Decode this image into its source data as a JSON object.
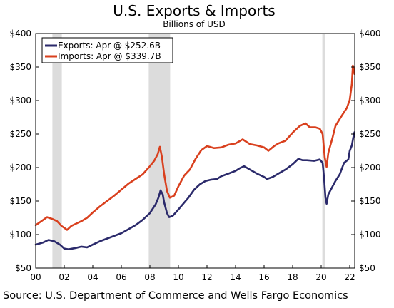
{
  "chart_data": {
    "type": "line",
    "title": "U.S. Exports & Imports",
    "subtitle": "Billions of USD",
    "source": "Source: U.S. Department of Commerce and Wells Fargo Economics",
    "ylim": [
      50,
      400
    ],
    "xlim": [
      2000.0,
      2022.35
    ],
    "yticks": [
      50,
      100,
      150,
      200,
      250,
      300,
      350,
      400
    ],
    "ytick_labels_left": [
      "$50",
      "$100",
      "$150",
      "$200",
      "$250",
      "$300",
      "$350",
      "$400"
    ],
    "ytick_labels_right": [
      "$50",
      "$100",
      "$150",
      "$200",
      "$250",
      "$300",
      "$350",
      "$400"
    ],
    "xticks": [
      2000,
      2002,
      2004,
      2006,
      2008,
      2010,
      2012,
      2014,
      2016,
      2018,
      2020,
      2022
    ],
    "xtick_labels": [
      "00",
      "02",
      "04",
      "06",
      "08",
      "10",
      "12",
      "14",
      "16",
      "18",
      "20",
      "22"
    ],
    "recessions": [
      [
        2001.17,
        2001.83
      ],
      [
        2007.92,
        2009.42
      ],
      [
        2020.08,
        2020.25
      ]
    ],
    "grid": false,
    "legend_position": "top-left",
    "series": [
      {
        "name": "Exports: Apr @ $252.6B",
        "color": "#2b2a6b",
        "points": [
          [
            2000.0,
            85
          ],
          [
            2000.5,
            88
          ],
          [
            2000.9,
            92
          ],
          [
            2001.3,
            90
          ],
          [
            2001.7,
            85
          ],
          [
            2002.0,
            79
          ],
          [
            2002.3,
            78
          ],
          [
            2002.8,
            80
          ],
          [
            2003.2,
            82
          ],
          [
            2003.6,
            81
          ],
          [
            2004.0,
            85
          ],
          [
            2004.5,
            90
          ],
          [
            2005.0,
            94
          ],
          [
            2005.5,
            98
          ],
          [
            2006.0,
            102
          ],
          [
            2006.5,
            108
          ],
          [
            2007.0,
            114
          ],
          [
            2007.5,
            122
          ],
          [
            2008.0,
            132
          ],
          [
            2008.4,
            145
          ],
          [
            2008.6,
            155
          ],
          [
            2008.75,
            166
          ],
          [
            2008.9,
            160
          ],
          [
            2009.0,
            148
          ],
          [
            2009.2,
            132
          ],
          [
            2009.35,
            126
          ],
          [
            2009.6,
            128
          ],
          [
            2009.9,
            135
          ],
          [
            2010.3,
            145
          ],
          [
            2010.7,
            155
          ],
          [
            2011.1,
            167
          ],
          [
            2011.5,
            175
          ],
          [
            2011.9,
            180
          ],
          [
            2012.3,
            182
          ],
          [
            2012.7,
            183
          ],
          [
            2013.0,
            187
          ],
          [
            2013.5,
            191
          ],
          [
            2014.0,
            195
          ],
          [
            2014.3,
            199
          ],
          [
            2014.6,
            202
          ],
          [
            2015.0,
            197
          ],
          [
            2015.5,
            191
          ],
          [
            2016.0,
            186
          ],
          [
            2016.2,
            183
          ],
          [
            2016.6,
            186
          ],
          [
            2017.0,
            191
          ],
          [
            2017.5,
            197
          ],
          [
            2018.0,
            205
          ],
          [
            2018.4,
            213
          ],
          [
            2018.7,
            211
          ],
          [
            2019.0,
            211
          ],
          [
            2019.5,
            210
          ],
          [
            2019.9,
            212
          ],
          [
            2020.1,
            207
          ],
          [
            2020.2,
            185
          ],
          [
            2020.3,
            155
          ],
          [
            2020.38,
            146
          ],
          [
            2020.5,
            160
          ],
          [
            2020.8,
            172
          ],
          [
            2021.0,
            180
          ],
          [
            2021.3,
            190
          ],
          [
            2021.6,
            207
          ],
          [
            2021.9,
            212
          ],
          [
            2022.0,
            225
          ],
          [
            2022.15,
            233
          ],
          [
            2022.25,
            245
          ],
          [
            2022.33,
            252.6
          ]
        ]
      },
      {
        "name": "Imports: Apr @ $339.7B",
        "color": "#d9401e",
        "points": [
          [
            2000.0,
            114
          ],
          [
            2000.4,
            120
          ],
          [
            2000.8,
            126
          ],
          [
            2001.2,
            123
          ],
          [
            2001.5,
            120
          ],
          [
            2001.8,
            113
          ],
          [
            2002.0,
            110
          ],
          [
            2002.2,
            107
          ],
          [
            2002.5,
            113
          ],
          [
            2002.8,
            116
          ],
          [
            2003.2,
            120
          ],
          [
            2003.6,
            125
          ],
          [
            2004.0,
            133
          ],
          [
            2004.5,
            142
          ],
          [
            2005.0,
            150
          ],
          [
            2005.5,
            158
          ],
          [
            2006.0,
            167
          ],
          [
            2006.5,
            176
          ],
          [
            2007.0,
            183
          ],
          [
            2007.5,
            190
          ],
          [
            2008.0,
            202
          ],
          [
            2008.3,
            210
          ],
          [
            2008.55,
            220
          ],
          [
            2008.7,
            231
          ],
          [
            2008.85,
            215
          ],
          [
            2009.0,
            190
          ],
          [
            2009.2,
            165
          ],
          [
            2009.4,
            155
          ],
          [
            2009.7,
            158
          ],
          [
            2010.0,
            172
          ],
          [
            2010.4,
            188
          ],
          [
            2010.8,
            197
          ],
          [
            2011.2,
            213
          ],
          [
            2011.6,
            226
          ],
          [
            2012.0,
            232
          ],
          [
            2012.5,
            229
          ],
          [
            2013.0,
            230
          ],
          [
            2013.5,
            234
          ],
          [
            2014.0,
            236
          ],
          [
            2014.5,
            242
          ],
          [
            2015.0,
            235
          ],
          [
            2015.5,
            233
          ],
          [
            2016.0,
            230
          ],
          [
            2016.3,
            225
          ],
          [
            2016.7,
            232
          ],
          [
            2017.0,
            236
          ],
          [
            2017.5,
            240
          ],
          [
            2018.0,
            252
          ],
          [
            2018.5,
            262
          ],
          [
            2018.9,
            266
          ],
          [
            2019.2,
            260
          ],
          [
            2019.6,
            260
          ],
          [
            2019.9,
            258
          ],
          [
            2020.1,
            250
          ],
          [
            2020.25,
            215
          ],
          [
            2020.38,
            201
          ],
          [
            2020.5,
            222
          ],
          [
            2020.8,
            245
          ],
          [
            2021.0,
            262
          ],
          [
            2021.4,
            276
          ],
          [
            2021.8,
            289
          ],
          [
            2022.0,
            301
          ],
          [
            2022.15,
            325
          ],
          [
            2022.22,
            352
          ],
          [
            2022.28,
            345
          ],
          [
            2022.33,
            339.7
          ]
        ]
      }
    ]
  }
}
